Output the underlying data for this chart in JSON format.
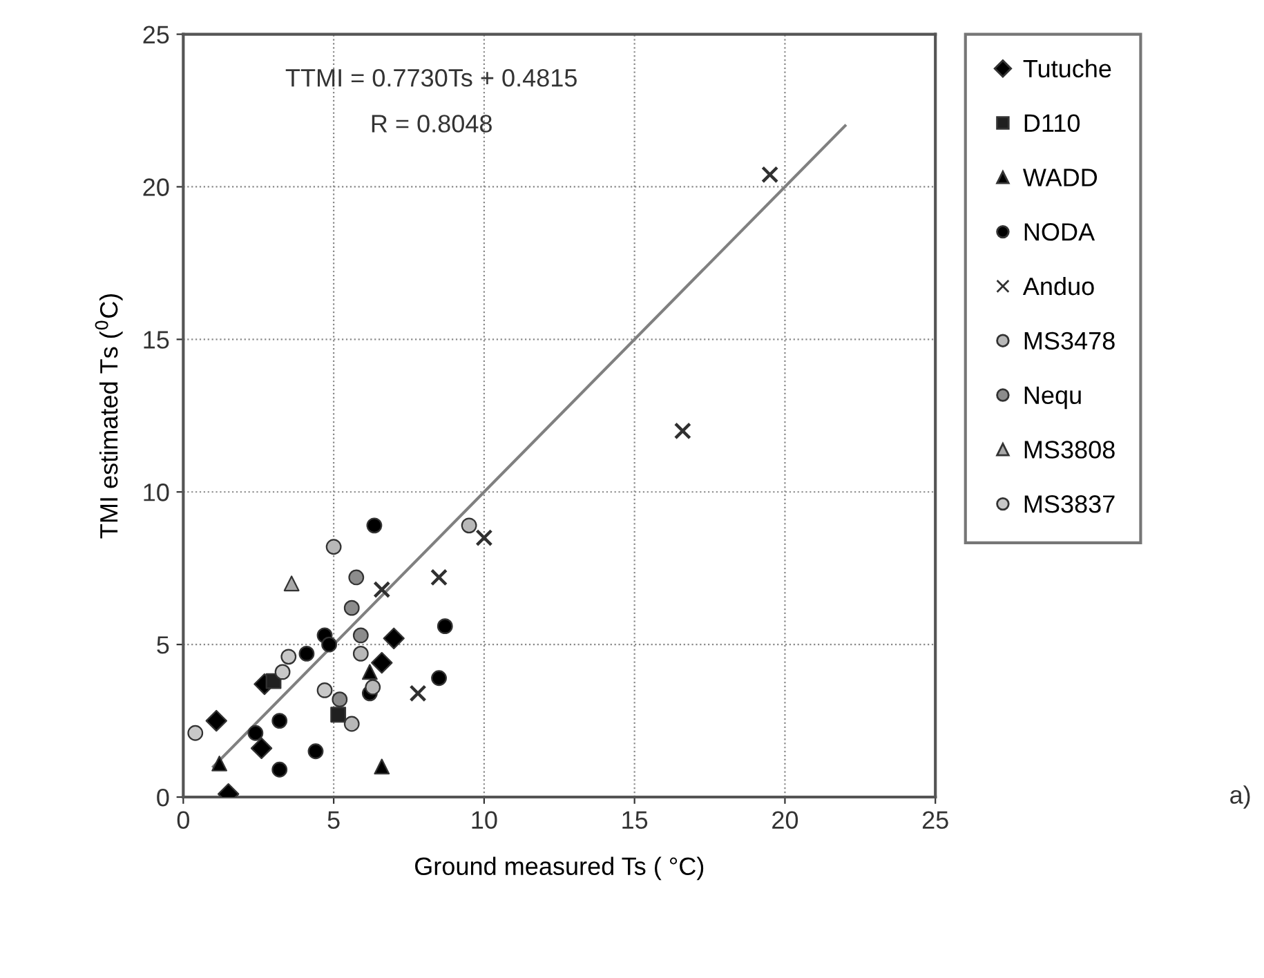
{
  "chart_data": {
    "type": "scatter",
    "xlabel": "Ground measured Ts ( °C)",
    "ylabel": "TMI estimated Ts ($^{0}$C)",
    "xlim": [
      0,
      25
    ],
    "ylim": [
      0,
      25
    ],
    "xticks": [
      0,
      5,
      10,
      15,
      20,
      25
    ],
    "yticks": [
      0,
      5,
      10,
      15,
      20,
      25
    ],
    "grid": true,
    "legend": "right",
    "annotations": [
      "TTMI = 0.7730Ts + 0.4815",
      "R = 0.8048",
      "a)"
    ],
    "series": [
      {
        "name": "Tutuche",
        "color": "#000000",
        "marker": "diamond",
        "x": [
          7.0,
          2.7,
          2.6,
          1.5,
          1.1,
          6.6
        ],
        "values": [
          5.2,
          3.7,
          1.6,
          0.1,
          2.5,
          4.4
        ]
      },
      {
        "name": "D110",
        "color": "#202020",
        "marker": "square",
        "x": [
          5.15,
          3.0
        ],
        "values": [
          2.7,
          3.8
        ]
      },
      {
        "name": "WADD",
        "color": "#000000",
        "marker": "triangle",
        "x": [
          6.6,
          1.2,
          6.2
        ],
        "values": [
          1.0,
          1.1,
          4.1
        ]
      },
      {
        "name": "NODA",
        "color": "#000000",
        "marker": "circle",
        "x": [
          6.35,
          4.7,
          4.85,
          8.7,
          8.5,
          3.2,
          2.4,
          3.2,
          4.4,
          6.2,
          4.1
        ],
        "values": [
          8.9,
          5.3,
          5.0,
          5.6,
          3.9,
          2.5,
          2.1,
          0.9,
          1.5,
          3.4,
          4.7
        ]
      },
      {
        "name": "Anduo",
        "color": "#303030",
        "marker": "cross",
        "x": [
          6.6,
          7.8,
          8.5,
          10.0,
          16.6,
          19.5
        ],
        "values": [
          6.8,
          3.4,
          7.2,
          8.5,
          12.0,
          20.4
        ]
      },
      {
        "name": "MS3478",
        "color": "#b8b8b8",
        "marker": "circle",
        "x": [
          5.0,
          9.5,
          5.9,
          5.6,
          6.3
        ],
        "values": [
          8.2,
          8.9,
          4.7,
          2.4,
          3.6
        ]
      },
      {
        "name": "Nequ",
        "color": "#8c8c8c",
        "marker": "circle",
        "x": [
          5.75,
          5.6,
          5.9,
          5.2
        ],
        "values": [
          7.2,
          6.2,
          5.3,
          3.2
        ]
      },
      {
        "name": "MS3808",
        "color": "#a8a8a8",
        "marker": "triangle",
        "x": [
          3.6
        ],
        "values": [
          7.0
        ]
      },
      {
        "name": "MS3837",
        "color": "#c8c8c8",
        "marker": "circle",
        "x": [
          3.5,
          0.4,
          4.7,
          3.3
        ],
        "values": [
          4.6,
          2.1,
          3.5,
          4.1
        ]
      },
      {
        "type": "line",
        "color": "#808080",
        "line_style": "solid",
        "x": [
          1,
          22
        ],
        "values": [
          1,
          22
        ]
      }
    ]
  }
}
